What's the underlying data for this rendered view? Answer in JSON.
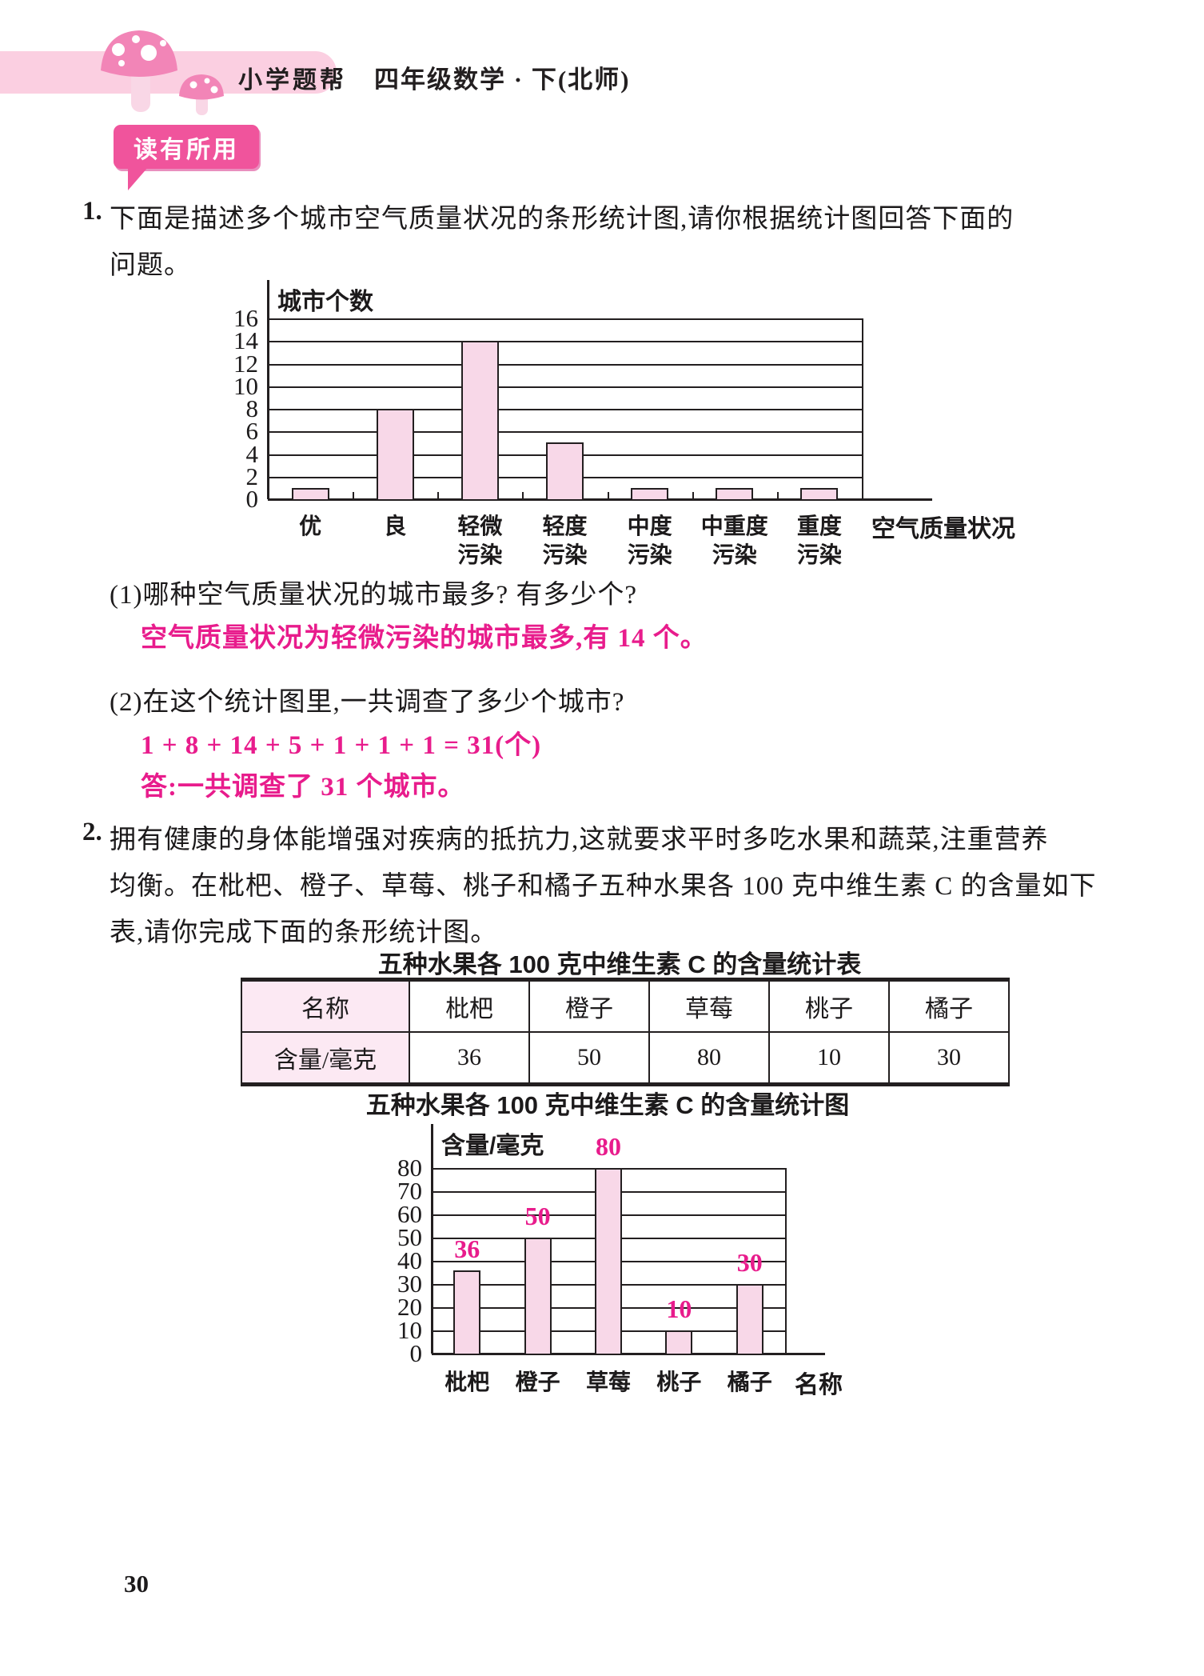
{
  "header": {
    "brand": "小学题帮",
    "edition": "四年级数学 · 下(北师)"
  },
  "badge": {
    "label": "读有所用"
  },
  "q1": {
    "number": "1.",
    "lines": [
      "下面是描述多个城市空气质量状况的条形统计图,请你根据统计图回答下面的",
      "问题。"
    ],
    "sub1": {
      "question": "(1)哪种空气质量状况的城市最多? 有多少个?",
      "answer": "空气质量状况为轻微污染的城市最多,有 14 个。"
    },
    "sub2": {
      "question": "(2)在这个统计图里,一共调查了多少个城市?",
      "work": "1 + 8 + 14 + 5 + 1 + 1 + 1 = 31(个)",
      "answer": "答:一共调查了 31 个城市。"
    }
  },
  "q2": {
    "number": "2.",
    "lines": [
      "拥有健康的身体能增强对疾病的抵抗力,这就要求平时多吃水果和蔬菜,注重营养",
      "均衡。在枇杷、橙子、草莓、桃子和橘子五种水果各 100 克中维生素 C 的含量如下",
      "表,请你完成下面的条形统计图。"
    ],
    "table": {
      "title": "五种水果各 100 克中维生素 C 的含量统计表",
      "name_header": "名称",
      "row_header": "含量/毫克",
      "columns": [
        "枇杷",
        "橙子",
        "草莓",
        "桃子",
        "橘子"
      ],
      "values": [
        "36",
        "50",
        "80",
        "10",
        "30"
      ]
    }
  },
  "chart_data": [
    {
      "type": "bar",
      "title": "",
      "ylabel": "城市个数",
      "xlabel": "空气质量状况",
      "categories": [
        "优",
        "良",
        "轻微污染",
        "轻度污染",
        "中度污染",
        "中重度污染",
        "重度污染"
      ],
      "values": [
        1,
        8,
        14,
        5,
        1,
        1,
        1
      ],
      "ylim": [
        0,
        16
      ],
      "ytick_step": 2,
      "grid": true,
      "legend": "none",
      "bar_color": "#f8d8e8"
    },
    {
      "type": "bar",
      "title": "五种水果各 100 克中维生素 C 的含量统计图",
      "ylabel": "含量/毫克",
      "xlabel": "名称",
      "categories": [
        "枇杷",
        "橙子",
        "草莓",
        "桃子",
        "橘子"
      ],
      "values": [
        36,
        50,
        80,
        10,
        30
      ],
      "value_labels": [
        "36",
        "50",
        "80",
        "10",
        "30"
      ],
      "ylim": [
        0,
        80
      ],
      "ytick_step": 10,
      "grid": true,
      "legend": "none",
      "bar_color": "#f8d8e8"
    }
  ],
  "colors": {
    "badge_pink": "#f0549c",
    "header_bar_pink": "#fbcfe1",
    "handwriting_magenta": "#e81c8c",
    "bar_fill_pink": "#f8d8e8",
    "table_label_pink": "#fce9f3",
    "ink": "#231f20"
  },
  "page": {
    "number": "30"
  }
}
